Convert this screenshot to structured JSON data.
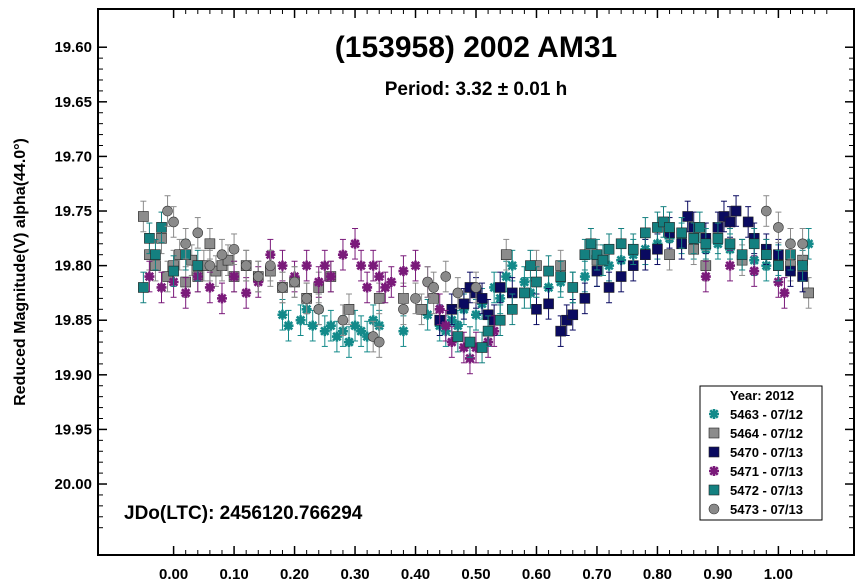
{
  "chart_data": {
    "type": "scatter",
    "title": "(153958) 2002 AM31",
    "subtitle": "Period: 3.32 ± 0.01 h",
    "ylabel": "Reduced Magnitude(V) alpha(44.0°)",
    "xlabel": "",
    "annotation": "JDo(LTC): 2456120.766294",
    "xlim": [
      -0.125,
      1.125
    ],
    "ylim": [
      20.065,
      19.565
    ],
    "y_inverted": true,
    "x_ticks": [
      "0.00",
      "0.10",
      "0.20",
      "0.30",
      "0.40",
      "0.50",
      "0.60",
      "0.70",
      "0.80",
      "0.90",
      "1.00"
    ],
    "y_ticks": [
      "19.60",
      "19.65",
      "19.70",
      "19.75",
      "19.80",
      "19.85",
      "19.90",
      "19.95",
      "20.00"
    ],
    "grid": false,
    "legend": {
      "title": "Year: 2012",
      "placement": "bottom-right"
    },
    "series": [
      {
        "name": "5463 - 07/12",
        "color": "#138a8a",
        "marker": "asterisk",
        "points": [
          [
            0.18,
            19.845
          ],
          [
            0.19,
            19.855
          ],
          [
            0.21,
            19.85
          ],
          [
            0.22,
            19.84
          ],
          [
            0.23,
            19.855
          ],
          [
            0.24,
            19.84
          ],
          [
            0.25,
            19.86
          ],
          [
            0.26,
            19.855
          ],
          [
            0.27,
            19.865
          ],
          [
            0.28,
            19.86
          ],
          [
            0.29,
            19.87
          ],
          [
            0.3,
            19.855
          ],
          [
            0.31,
            19.86
          ],
          [
            0.32,
            19.865
          ],
          [
            0.33,
            19.85
          ],
          [
            0.34,
            19.855
          ],
          [
            0.38,
            19.86
          ],
          [
            0.42,
            19.845
          ],
          [
            0.44,
            19.855
          ],
          [
            0.45,
            19.86
          ],
          [
            0.46,
            19.85
          ],
          [
            0.47,
            19.855
          ],
          [
            0.48,
            19.84
          ],
          [
            0.5,
            19.845
          ],
          [
            0.51,
            19.835
          ],
          [
            0.53,
            19.82
          ],
          [
            0.54,
            19.83
          ],
          [
            0.55,
            19.81
          ],
          [
            0.56,
            19.8
          ],
          [
            0.58,
            19.815
          ],
          [
            0.59,
            19.825
          ],
          [
            0.62,
            19.82
          ],
          [
            0.64,
            19.815
          ],
          [
            0.66,
            19.82
          ],
          [
            0.68,
            19.81
          ],
          [
            0.7,
            19.805
          ],
          [
            0.72,
            19.8
          ],
          [
            0.74,
            19.795
          ],
          [
            0.76,
            19.79
          ],
          [
            0.78,
            19.785
          ],
          [
            0.8,
            19.78
          ],
          [
            0.82,
            19.775
          ],
          [
            0.84,
            19.775
          ],
          [
            0.86,
            19.78
          ],
          [
            0.88,
            19.785
          ],
          [
            0.9,
            19.78
          ],
          [
            0.92,
            19.785
          ],
          [
            0.94,
            19.79
          ],
          [
            0.96,
            19.795
          ],
          [
            0.98,
            19.8
          ],
          [
            1.0,
            19.795
          ],
          [
            1.02,
            19.79
          ],
          [
            1.04,
            19.795
          ],
          [
            1.05,
            19.78
          ]
        ]
      },
      {
        "name": "5464 - 07/12",
        "color": "#8c8c8c",
        "marker": "square",
        "points": [
          [
            -0.05,
            19.755
          ],
          [
            -0.04,
            19.79
          ],
          [
            -0.03,
            19.8
          ],
          [
            -0.02,
            19.775
          ],
          [
            -0.01,
            19.81
          ],
          [
            0.0,
            19.8
          ],
          [
            0.01,
            19.79
          ],
          [
            0.02,
            19.815
          ],
          [
            0.03,
            19.795
          ],
          [
            0.04,
            19.81
          ],
          [
            0.05,
            19.8
          ],
          [
            0.06,
            19.78
          ],
          [
            0.07,
            19.805
          ],
          [
            0.08,
            19.8
          ],
          [
            0.09,
            19.795
          ],
          [
            0.1,
            19.81
          ],
          [
            0.12,
            19.8
          ],
          [
            0.14,
            19.81
          ],
          [
            0.16,
            19.805
          ],
          [
            0.18,
            19.82
          ],
          [
            0.2,
            19.815
          ],
          [
            0.22,
            19.83
          ],
          [
            0.24,
            19.82
          ],
          [
            0.26,
            19.81
          ],
          [
            0.29,
            19.84
          ],
          [
            0.34,
            19.83
          ],
          [
            0.38,
            19.83
          ],
          [
            0.41,
            19.84
          ],
          [
            0.43,
            19.83
          ],
          [
            0.55,
            19.79
          ],
          [
            0.6,
            19.8
          ],
          [
            0.64,
            19.8
          ],
          [
            0.7,
            19.795
          ],
          [
            0.78,
            19.79
          ],
          [
            0.82,
            19.79
          ],
          [
            0.86,
            19.785
          ],
          [
            0.88,
            19.8
          ],
          [
            0.94,
            19.795
          ],
          [
            0.98,
            19.79
          ],
          [
            1.0,
            19.8
          ],
          [
            1.02,
            19.8
          ],
          [
            1.04,
            19.795
          ],
          [
            1.05,
            19.825
          ]
        ]
      },
      {
        "name": "5470 - 07/13",
        "color": "#0a0a60",
        "marker": "square",
        "points": [
          [
            0.44,
            19.85
          ],
          [
            0.46,
            19.84
          ],
          [
            0.48,
            19.835
          ],
          [
            0.49,
            19.82
          ],
          [
            0.5,
            19.825
          ],
          [
            0.51,
            19.83
          ],
          [
            0.52,
            19.845
          ],
          [
            0.53,
            19.85
          ],
          [
            0.54,
            19.82
          ],
          [
            0.56,
            19.825
          ],
          [
            0.6,
            19.84
          ],
          [
            0.62,
            19.835
          ],
          [
            0.64,
            19.86
          ],
          [
            0.65,
            19.85
          ],
          [
            0.66,
            19.845
          ],
          [
            0.68,
            19.83
          ],
          [
            0.7,
            19.805
          ],
          [
            0.72,
            19.82
          ],
          [
            0.74,
            19.81
          ],
          [
            0.76,
            19.8
          ],
          [
            0.78,
            19.79
          ],
          [
            0.8,
            19.785
          ],
          [
            0.82,
            19.77
          ],
          [
            0.84,
            19.78
          ],
          [
            0.85,
            19.755
          ],
          [
            0.86,
            19.765
          ],
          [
            0.88,
            19.775
          ],
          [
            0.9,
            19.765
          ],
          [
            0.91,
            19.755
          ],
          [
            0.92,
            19.76
          ],
          [
            0.93,
            19.75
          ],
          [
            0.95,
            19.76
          ],
          [
            0.96,
            19.775
          ],
          [
            0.98,
            19.785
          ],
          [
            1.0,
            19.79
          ],
          [
            1.02,
            19.805
          ],
          [
            1.04,
            19.81
          ]
        ]
      },
      {
        "name": "5471 - 07/13",
        "color": "#7a1a7a",
        "marker": "asterisk",
        "points": [
          [
            -0.04,
            19.81
          ],
          [
            -0.02,
            19.82
          ],
          [
            0.0,
            19.815
          ],
          [
            0.02,
            19.825
          ],
          [
            0.04,
            19.81
          ],
          [
            0.06,
            19.82
          ],
          [
            0.08,
            19.83
          ],
          [
            0.1,
            19.81
          ],
          [
            0.12,
            19.825
          ],
          [
            0.14,
            19.815
          ],
          [
            0.16,
            19.79
          ],
          [
            0.18,
            19.8
          ],
          [
            0.2,
            19.81
          ],
          [
            0.22,
            19.8
          ],
          [
            0.24,
            19.815
          ],
          [
            0.25,
            19.8
          ],
          [
            0.26,
            19.81
          ],
          [
            0.28,
            19.79
          ],
          [
            0.3,
            19.78
          ],
          [
            0.31,
            19.8
          ],
          [
            0.32,
            19.82
          ],
          [
            0.33,
            19.8
          ],
          [
            0.34,
            19.81
          ],
          [
            0.35,
            19.82
          ],
          [
            0.36,
            19.815
          ],
          [
            0.38,
            19.805
          ],
          [
            0.4,
            19.8
          ],
          [
            0.42,
            19.815
          ],
          [
            0.44,
            19.84
          ],
          [
            0.45,
            19.855
          ],
          [
            0.46,
            19.87
          ],
          [
            0.48,
            19.875
          ],
          [
            0.49,
            19.885
          ],
          [
            0.5,
            19.875
          ],
          [
            0.52,
            19.87
          ],
          [
            0.53,
            19.86
          ],
          [
            0.88,
            19.81
          ],
          [
            0.92,
            19.8
          ],
          [
            0.96,
            19.805
          ],
          [
            1.0,
            19.815
          ],
          [
            1.01,
            19.825
          ]
        ]
      },
      {
        "name": "5472 - 07/13",
        "color": "#148080",
        "marker": "square",
        "points": [
          [
            -0.05,
            19.82
          ],
          [
            -0.04,
            19.775
          ],
          [
            -0.03,
            19.79
          ],
          [
            -0.02,
            19.765
          ],
          [
            0.0,
            19.805
          ],
          [
            0.02,
            19.79
          ],
          [
            0.04,
            19.8
          ],
          [
            0.47,
            19.865
          ],
          [
            0.49,
            19.87
          ],
          [
            0.51,
            19.875
          ],
          [
            0.52,
            19.86
          ],
          [
            0.54,
            19.85
          ],
          [
            0.56,
            19.84
          ],
          [
            0.58,
            19.825
          ],
          [
            0.59,
            19.8
          ],
          [
            0.6,
            19.815
          ],
          [
            0.62,
            19.805
          ],
          [
            0.64,
            19.81
          ],
          [
            0.66,
            19.82
          ],
          [
            0.68,
            19.79
          ],
          [
            0.69,
            19.78
          ],
          [
            0.7,
            19.79
          ],
          [
            0.71,
            19.795
          ],
          [
            0.72,
            19.785
          ],
          [
            0.74,
            19.78
          ],
          [
            0.76,
            19.785
          ],
          [
            0.78,
            19.77
          ],
          [
            0.8,
            19.765
          ],
          [
            0.81,
            19.76
          ],
          [
            0.82,
            19.765
          ],
          [
            0.84,
            19.77
          ],
          [
            0.86,
            19.775
          ],
          [
            0.87,
            19.765
          ],
          [
            0.88,
            19.78
          ],
          [
            0.9,
            19.775
          ],
          [
            0.92,
            19.78
          ],
          [
            0.94,
            19.79
          ],
          [
            0.96,
            19.78
          ],
          [
            0.98,
            19.79
          ],
          [
            1.0,
            19.8
          ],
          [
            1.02,
            19.79
          ],
          [
            1.04,
            19.8
          ]
        ]
      },
      {
        "name": "5473 - 07/13",
        "color": "#8a8a8a",
        "marker": "circle",
        "points": [
          [
            -0.01,
            19.75
          ],
          [
            0.0,
            19.76
          ],
          [
            0.02,
            19.78
          ],
          [
            0.04,
            19.77
          ],
          [
            0.06,
            19.8
          ],
          [
            0.08,
            19.79
          ],
          [
            0.1,
            19.785
          ],
          [
            0.12,
            19.8
          ],
          [
            0.14,
            19.81
          ],
          [
            0.16,
            19.8
          ],
          [
            0.18,
            19.82
          ],
          [
            0.2,
            19.815
          ],
          [
            0.22,
            19.83
          ],
          [
            0.24,
            19.84
          ],
          [
            0.28,
            19.85
          ],
          [
            0.33,
            19.865
          ],
          [
            0.34,
            19.87
          ],
          [
            0.38,
            19.84
          ],
          [
            0.4,
            19.83
          ],
          [
            0.42,
            19.815
          ],
          [
            0.43,
            19.82
          ],
          [
            0.45,
            19.81
          ],
          [
            0.47,
            19.825
          ],
          [
            0.5,
            19.82
          ],
          [
            0.98,
            19.75
          ],
          [
            1.0,
            19.765
          ],
          [
            1.02,
            19.78
          ],
          [
            1.04,
            19.78
          ]
        ]
      }
    ]
  }
}
